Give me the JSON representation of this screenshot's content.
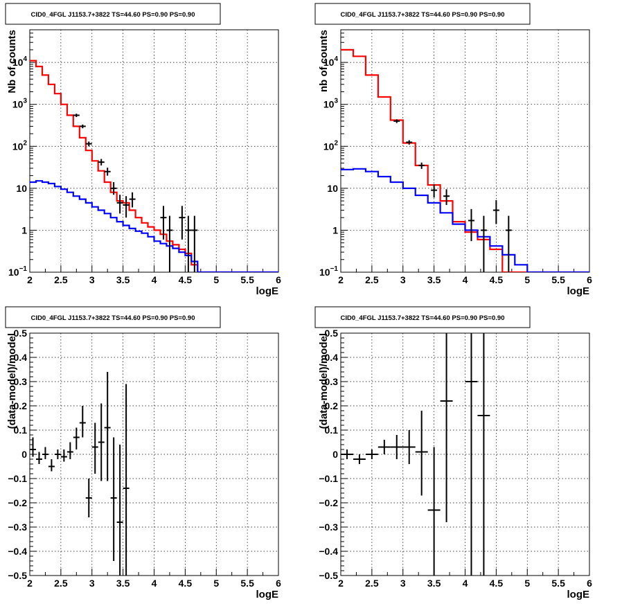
{
  "chart_data": [
    {
      "type": "line",
      "title": "CID0_4FGL J1153.7+3822 TS=44.60 PS=0.90 PS=0.90",
      "xlabel": "logE",
      "ylabel": "Nb of counts",
      "xlim": [
        2,
        6
      ],
      "ylim": [
        0.1,
        60000
      ],
      "yscale": "log",
      "grid": true,
      "x_ticks": [
        "2",
        "2.5",
        "3",
        "3.5",
        "4",
        "4.5",
        "5",
        "5.5",
        "6"
      ],
      "y_ticks": [
        {
          "v": 0.1,
          "base": "10",
          "exp": "−1"
        },
        {
          "v": 1,
          "label": "1"
        },
        {
          "v": 10,
          "label": "10"
        },
        {
          "v": 100,
          "base": "10",
          "exp": "2"
        },
        {
          "v": 1000,
          "base": "10",
          "exp": "3"
        },
        {
          "v": 10000,
          "base": "10",
          "exp": "4"
        }
      ],
      "series": [
        {
          "color": "#ff0000",
          "style": "step",
          "bin_width": 0.1,
          "edges_start": 2.0,
          "values": [
            11000,
            8000,
            5000,
            3000,
            1800,
            1000,
            550,
            300,
            160,
            80,
            45,
            26,
            14,
            8,
            5,
            4.5,
            3,
            2,
            1.5,
            1.2,
            1.0,
            0.8,
            0.55,
            0.45,
            0.35,
            0.28,
            0.15,
            0.09,
            0.09,
            0.09,
            0.09,
            0.09,
            0.09,
            0.09,
            0.09,
            0.09,
            0.09,
            0.09,
            0.09,
            0.09
          ]
        },
        {
          "color": "#0000ff",
          "style": "step",
          "bin_width": 0.1,
          "edges_start": 2.0,
          "values": [
            14,
            15,
            14,
            13,
            11,
            9.5,
            8,
            6.5,
            5.5,
            4.5,
            3.6,
            3.0,
            2.5,
            2.0,
            1.6,
            1.3,
            1.1,
            0.95,
            0.85,
            0.7,
            0.55,
            0.48,
            0.42,
            0.37,
            0.3,
            0.25,
            0.18,
            0.1,
            0.1,
            0.1,
            0.1,
            0.1,
            0.1,
            0.1,
            0.1,
            0.1,
            0.1,
            0.1,
            0.1,
            0.1
          ]
        }
      ],
      "points": [
        {
          "x": 2.75,
          "y": 550,
          "ylo": 500,
          "yhi": 600
        },
        {
          "x": 2.85,
          "y": 300,
          "ylo": 270,
          "yhi": 330
        },
        {
          "x": 2.95,
          "y": 115,
          "ylo": 100,
          "yhi": 130
        },
        {
          "x": 3.15,
          "y": 42,
          "ylo": 35,
          "yhi": 50
        },
        {
          "x": 3.25,
          "y": 25,
          "ylo": 20,
          "yhi": 31
        },
        {
          "x": 3.35,
          "y": 10,
          "ylo": 7,
          "yhi": 14
        },
        {
          "x": 3.45,
          "y": 4.5,
          "ylo": 2.5,
          "yhi": 7
        },
        {
          "x": 3.55,
          "y": 4,
          "ylo": 2,
          "yhi": 6.5
        },
        {
          "x": 3.65,
          "y": 5.5,
          "ylo": 3.5,
          "yhi": 8
        },
        {
          "x": 4.15,
          "y": 2,
          "ylo": 0.6,
          "yhi": 3.8
        },
        {
          "x": 4.25,
          "y": 1,
          "ylo": 0.1,
          "yhi": 2.2
        },
        {
          "x": 4.45,
          "y": 2,
          "ylo": 0.6,
          "yhi": 3.8
        },
        {
          "x": 4.55,
          "y": 1,
          "ylo": 0.1,
          "yhi": 2.2
        },
        {
          "x": 4.65,
          "y": 1,
          "ylo": 0.1,
          "yhi": 2.2
        }
      ]
    },
    {
      "type": "line",
      "title": "CID0_4FGL J1153.7+3822 TS=44.60 PS=0.90 PS=0.90",
      "xlabel": "logE",
      "ylabel": "nb of counts",
      "xlim": [
        2,
        6
      ],
      "ylim": [
        0.1,
        60000
      ],
      "yscale": "log",
      "grid": true,
      "x_ticks": [
        "2",
        "2.5",
        "3",
        "3.5",
        "4",
        "4.5",
        "5",
        "5.5",
        "6"
      ],
      "y_ticks": [
        {
          "v": 0.1,
          "base": "10",
          "exp": "−1"
        },
        {
          "v": 1,
          "label": "1"
        },
        {
          "v": 10,
          "label": "10"
        },
        {
          "v": 100,
          "base": "10",
          "exp": "2"
        },
        {
          "v": 1000,
          "base": "10",
          "exp": "3"
        },
        {
          "v": 10000,
          "base": "10",
          "exp": "4"
        }
      ],
      "series": [
        {
          "color": "#ff0000",
          "style": "step",
          "bin_width": 0.2,
          "edges_start": 2.0,
          "values": [
            20000,
            14000,
            5000,
            1500,
            420,
            120,
            35,
            12,
            5,
            1.6,
            0.9,
            0.6,
            0.35,
            0.09,
            0.09,
            0.09,
            0.09,
            0.09,
            0.09,
            0.09
          ]
        },
        {
          "color": "#0000ff",
          "style": "step",
          "bin_width": 0.2,
          "edges_start": 2.0,
          "values": [
            28,
            29,
            25,
            19,
            14,
            10,
            6.8,
            4.5,
            2.6,
            1.4,
            1.0,
            0.7,
            0.42,
            0.26,
            0.15,
            0.1,
            0.1,
            0.1,
            0.1,
            0.1
          ]
        }
      ],
      "points": [
        {
          "x": 2.9,
          "y": 400,
          "ylo": 360,
          "yhi": 440
        },
        {
          "x": 3.1,
          "y": 125,
          "ylo": 110,
          "yhi": 140
        },
        {
          "x": 3.3,
          "y": 35,
          "ylo": 29,
          "yhi": 41
        },
        {
          "x": 3.5,
          "y": 9,
          "ylo": 6,
          "yhi": 12.5
        },
        {
          "x": 3.7,
          "y": 6.5,
          "ylo": 4,
          "yhi": 9.5
        },
        {
          "x": 4.1,
          "y": 1.7,
          "ylo": 0.55,
          "yhi": 3.2
        },
        {
          "x": 4.3,
          "y": 1,
          "ylo": 0.1,
          "yhi": 2.2
        },
        {
          "x": 4.5,
          "y": 3,
          "ylo": 1.4,
          "yhi": 5.2
        },
        {
          "x": 4.7,
          "y": 1,
          "ylo": 0.1,
          "yhi": 2.2
        }
      ]
    },
    {
      "type": "scatter",
      "title": "CID0_4FGL J1153.7+3822 TS=44.60 PS=0.90 PS=0.90",
      "xlabel": "logE",
      "ylabel": "(data-model)/model",
      "xlim": [
        2,
        6
      ],
      "ylim": [
        -0.5,
        0.5
      ],
      "grid": true,
      "x_ticks": [
        "2",
        "2.5",
        "3",
        "3.5",
        "4",
        "4.5",
        "5",
        "5.5",
        "6"
      ],
      "y_ticks": [
        "−0.5",
        "−0.4",
        "−0.3",
        "−0.2",
        "−0.1",
        "0",
        "0.1",
        "0.2",
        "0.3",
        "0.4",
        "0.5"
      ],
      "bin_halfwidth": 0.05,
      "points": [
        {
          "x": 2.05,
          "y": 0.02,
          "ylo": -0.01,
          "yhi": 0.07
        },
        {
          "x": 2.15,
          "y": -0.02,
          "ylo": -0.04,
          "yhi": 0.01
        },
        {
          "x": 2.25,
          "y": 0.0,
          "ylo": -0.02,
          "yhi": 0.03
        },
        {
          "x": 2.35,
          "y": -0.05,
          "ylo": -0.07,
          "yhi": -0.02
        },
        {
          "x": 2.45,
          "y": 0.0,
          "ylo": -0.02,
          "yhi": 0.02
        },
        {
          "x": 2.55,
          "y": -0.01,
          "ylo": -0.03,
          "yhi": 0.02
        },
        {
          "x": 2.65,
          "y": 0.01,
          "ylo": -0.02,
          "yhi": 0.05
        },
        {
          "x": 2.75,
          "y": 0.07,
          "ylo": 0.02,
          "yhi": 0.11
        },
        {
          "x": 2.85,
          "y": 0.13,
          "ylo": 0.07,
          "yhi": 0.2
        },
        {
          "x": 2.95,
          "y": -0.18,
          "ylo": -0.26,
          "yhi": -0.1
        },
        {
          "x": 3.05,
          "y": 0.03,
          "ylo": -0.08,
          "yhi": 0.13
        },
        {
          "x": 3.15,
          "y": 0.05,
          "ylo": -0.11,
          "yhi": 0.21
        },
        {
          "x": 3.25,
          "y": 0.11,
          "ylo": -0.11,
          "yhi": 0.34
        },
        {
          "x": 3.35,
          "y": -0.18,
          "ylo": -0.44,
          "yhi": 0.07
        },
        {
          "x": 3.45,
          "y": -0.28,
          "ylo": -0.6,
          "yhi": 0.04
        },
        {
          "x": 3.55,
          "y": -0.14,
          "ylo": -0.6,
          "yhi": 0.29
        }
      ]
    },
    {
      "type": "scatter",
      "title": "CID0_4FGL J1153.7+3822 TS=44.60 PS=0.90 PS=0.90",
      "xlabel": "logE",
      "ylabel": "(data-model)/model",
      "xlim": [
        2,
        6
      ],
      "ylim": [
        -0.5,
        0.5
      ],
      "grid": true,
      "x_ticks": [
        "2",
        "2.5",
        "3",
        "3.5",
        "4",
        "4.5",
        "5",
        "5.5",
        "6"
      ],
      "y_ticks": [
        "−0.5",
        "−0.4",
        "−0.3",
        "−0.2",
        "−0.1",
        "0",
        "0.1",
        "0.2",
        "0.3",
        "0.4",
        "0.5"
      ],
      "bin_halfwidth": 0.1,
      "points": [
        {
          "x": 2.1,
          "y": 0.0,
          "ylo": -0.02,
          "yhi": 0.02
        },
        {
          "x": 2.3,
          "y": -0.02,
          "ylo": -0.04,
          "yhi": 0.0
        },
        {
          "x": 2.5,
          "y": 0.0,
          "ylo": -0.02,
          "yhi": 0.02
        },
        {
          "x": 2.7,
          "y": 0.03,
          "ylo": 0.0,
          "yhi": 0.06
        },
        {
          "x": 2.9,
          "y": 0.03,
          "ylo": -0.02,
          "yhi": 0.08
        },
        {
          "x": 3.1,
          "y": 0.03,
          "ylo": -0.04,
          "yhi": 0.1
        },
        {
          "x": 3.3,
          "y": 0.01,
          "ylo": -0.17,
          "yhi": 0.18
        },
        {
          "x": 3.5,
          "y": -0.23,
          "ylo": -0.6,
          "yhi": 0.03
        },
        {
          "x": 3.7,
          "y": 0.22,
          "ylo": -0.28,
          "yhi": 0.6
        },
        {
          "x": 4.1,
          "y": 0.3,
          "ylo": -0.6,
          "yhi": 0.6
        },
        {
          "x": 4.3,
          "y": 0.16,
          "ylo": -0.6,
          "yhi": 0.6
        }
      ]
    }
  ]
}
